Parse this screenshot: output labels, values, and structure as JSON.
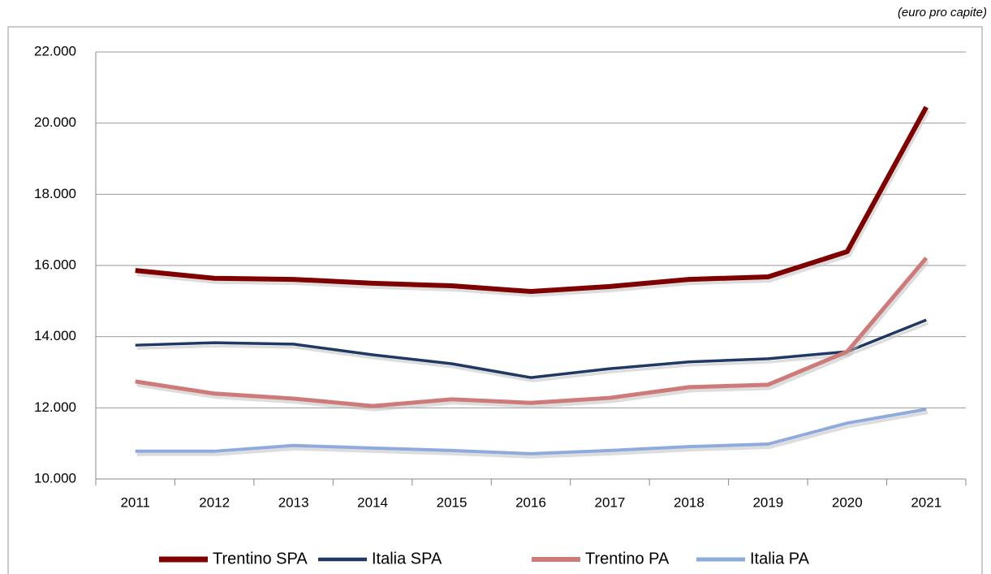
{
  "chart_data": {
    "type": "line",
    "subtitle": "(euro pro capite)",
    "categories": [
      "2011",
      "2012",
      "2013",
      "2014",
      "2015",
      "2016",
      "2017",
      "2018",
      "2019",
      "2020",
      "2021"
    ],
    "series": [
      {
        "name": "Trentino SPA",
        "color": "#7f0000",
        "values": [
          15860,
          15640,
          15610,
          15500,
          15430,
          15270,
          15410,
          15610,
          15680,
          16390,
          20450
        ]
      },
      {
        "name": "Italia SPA",
        "color": "#1f3864",
        "values": [
          13760,
          13830,
          13790,
          13490,
          13240,
          12850,
          13100,
          13290,
          13380,
          13580,
          14470
        ]
      },
      {
        "name": "Trentino PA",
        "color": "#cd7a78",
        "values": [
          12740,
          12400,
          12260,
          12050,
          12240,
          12140,
          12280,
          12580,
          12650,
          13580,
          16210
        ]
      },
      {
        "name": "Italia PA",
        "color": "#8faadc",
        "values": [
          10780,
          10780,
          10940,
          10870,
          10800,
          10710,
          10800,
          10910,
          10980,
          11570,
          11960
        ]
      }
    ],
    "ylim": [
      10000,
      22000
    ],
    "yticks": [
      {
        "value": 10000,
        "label": "10.000"
      },
      {
        "value": 12000,
        "label": "12.000"
      },
      {
        "value": 14000,
        "label": "14.000"
      },
      {
        "value": 16000,
        "label": "16.000"
      },
      {
        "value": 18000,
        "label": "18.000"
      },
      {
        "value": 20000,
        "label": "20.000"
      },
      {
        "value": 22000,
        "label": "22.000"
      }
    ],
    "grid": true,
    "legend": "bottom"
  }
}
